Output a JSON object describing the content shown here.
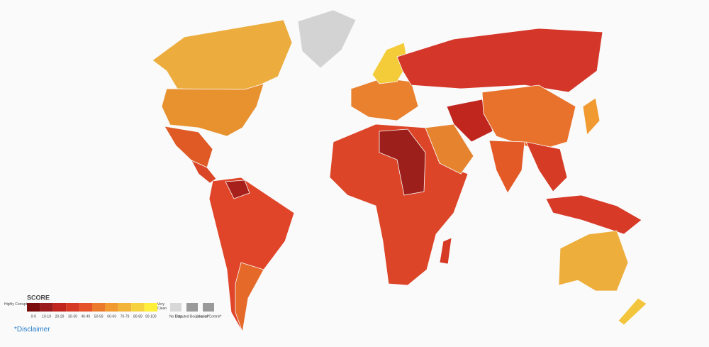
{
  "legend": {
    "title": "SCORE",
    "low_label": "Highly Corrupt",
    "high_label": "Very Clean",
    "bins": [
      {
        "label": "0-9",
        "color": "#7a0c0c"
      },
      {
        "label": "10-19",
        "color": "#9b1c1c"
      },
      {
        "label": "20-29",
        "color": "#c0261e"
      },
      {
        "label": "30-39",
        "color": "#d63a25"
      },
      {
        "label": "40-49",
        "color": "#e5522a"
      },
      {
        "label": "50-59",
        "color": "#ec7a2c"
      },
      {
        "label": "60-69",
        "color": "#f09a31"
      },
      {
        "label": "70-79",
        "color": "#f2b53a"
      },
      {
        "label": "80-89",
        "color": "#f6d33e"
      },
      {
        "label": "90-100",
        "color": "#ffef3a"
      }
    ],
    "extras": [
      {
        "label": "No Data",
        "color": "#d8d8d8"
      },
      {
        "label": "Disputed Boundaries*",
        "color": "#9a9a9a"
      },
      {
        "label": "Lines of Control*",
        "color": "#9a9a9a"
      }
    ]
  },
  "disclaimer": "*Disclaimer"
}
